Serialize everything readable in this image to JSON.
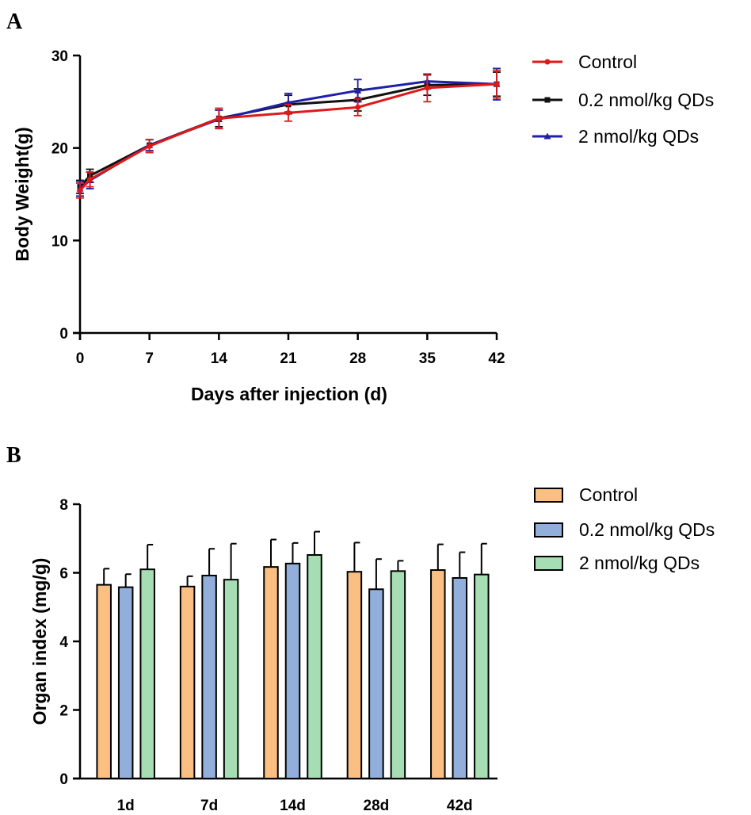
{
  "panels": {
    "a_label": "A",
    "b_label": "B"
  },
  "chart_data": [
    {
      "type": "line",
      "title": "",
      "xlabel": "Days after injection (d)",
      "ylabel": "Body Weight(g)",
      "xlim": [
        0,
        42
      ],
      "ylim": [
        0,
        30
      ],
      "xticks": [
        0,
        7,
        14,
        21,
        28,
        35,
        42
      ],
      "yticks": [
        0,
        10,
        20,
        30
      ],
      "grid": false,
      "legend_position": "top-right",
      "series": [
        {
          "name": "0.2 nmol/kg QDs",
          "color": "#111111",
          "marker": "square",
          "x": [
            0,
            1,
            7,
            14,
            21,
            28,
            35,
            42
          ],
          "y": [
            15.8,
            17.0,
            20.3,
            23.2,
            24.7,
            25.2,
            26.8,
            26.9
          ],
          "err": [
            0.7,
            0.7,
            0.6,
            0.9,
            1.0,
            1.2,
            1.1,
            1.3
          ]
        },
        {
          "name": "2 nmol/kg QDs",
          "color": "#1f1fa8",
          "marker": "triangle",
          "x": [
            0,
            1,
            7,
            14,
            21,
            28,
            35,
            42
          ],
          "y": [
            15.6,
            16.5,
            20.3,
            23.1,
            24.9,
            26.2,
            27.2,
            26.9
          ],
          "err": [
            0.8,
            0.9,
            0.6,
            1.0,
            1.0,
            1.2,
            0.8,
            1.7
          ]
        },
        {
          "name": "Control",
          "color": "#e01818",
          "marker": "circle",
          "x": [
            0,
            1,
            7,
            14,
            21,
            28,
            35,
            42
          ],
          "y": [
            15.4,
            16.6,
            20.2,
            23.2,
            23.8,
            24.4,
            26.5,
            26.9
          ],
          "err": [
            0.8,
            0.8,
            0.7,
            1.1,
            0.9,
            0.9,
            1.5,
            1.5
          ]
        }
      ],
      "legend_order": [
        "Control",
        "0.2 nmol/kg QDs",
        "2 nmol/kg QDs"
      ]
    },
    {
      "type": "bar",
      "title": "",
      "xlabel": "",
      "ylabel": "Organ index (mg/g)",
      "ylim": [
        0,
        8
      ],
      "yticks": [
        0,
        2,
        4,
        6,
        8
      ],
      "grid": false,
      "legend_position": "top-right",
      "categories": [
        "1d",
        "7d",
        "14d",
        "28d",
        "42d"
      ],
      "series": [
        {
          "name": "Control",
          "color": "#fbbf84",
          "values": [
            5.65,
            5.6,
            6.17,
            6.03,
            6.08
          ],
          "err": [
            0.47,
            0.3,
            0.8,
            0.85,
            0.75
          ]
        },
        {
          "name": "0.2 nmol/kg QDs",
          "color": "#92aedb",
          "values": [
            5.58,
            5.92,
            6.27,
            5.52,
            5.85
          ],
          "err": [
            0.38,
            0.78,
            0.6,
            0.88,
            0.75
          ]
        },
        {
          "name": "2 nmol/kg QDs",
          "color": "#a6ddb2",
          "values": [
            6.1,
            5.8,
            6.52,
            6.05,
            5.95
          ],
          "err": [
            0.72,
            1.05,
            0.68,
            0.3,
            0.9
          ]
        }
      ]
    }
  ]
}
